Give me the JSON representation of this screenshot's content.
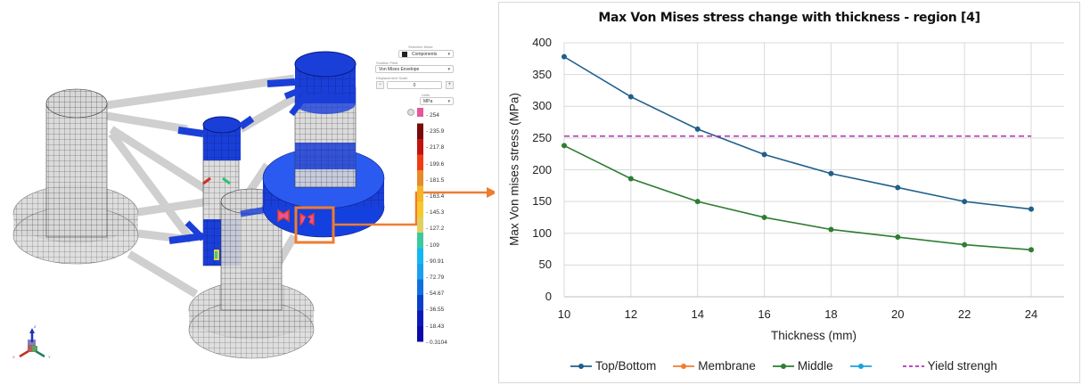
{
  "fea_view": {
    "controls": {
      "selection_mode_label": "Selection Mode",
      "selection_mode_value": "Components",
      "solution_field_label": "Solution Field",
      "solution_field_value": "Von Mises Envelope",
      "displacement_scale_label": "Displacement Scale",
      "displacement_scale_value": "0",
      "units_label": "Units",
      "units_value": "MPa"
    },
    "color_legend": {
      "ticks": [
        "254",
        "235.9",
        "217.8",
        "199.6",
        "181.5",
        "163.4",
        "145.3",
        "127.2",
        "109",
        "90.91",
        "72.79",
        "54.67",
        "36.55",
        "18.43",
        "0.3104"
      ],
      "colors": [
        "#e8559a",
        "#7a0a0a",
        "#c0140f",
        "#f03c14",
        "#e88a2a",
        "#f5b526",
        "#f5c92a",
        "#e0d060",
        "#3cc8a0",
        "#12b8f0",
        "#1aa0f0",
        "#1070e0",
        "#0a40c8",
        "#0a1ab8",
        "#0a0aa8"
      ]
    },
    "triad_axes": {
      "x": "X",
      "y": "Y",
      "z": "Z"
    },
    "highlight_color": "#ed7d31"
  },
  "chart_data": {
    "type": "line",
    "title": "Max Von Mises stress change with thickness - region [4]",
    "xlabel": "Thickness (mm)",
    "ylabel": "Max Von mises stress (MPa)",
    "x": [
      10,
      12,
      14,
      16,
      18,
      20,
      22,
      24
    ],
    "x_ticks": [
      "10",
      "12",
      "14",
      "16",
      "18",
      "20",
      "22",
      "24"
    ],
    "y_ticks": [
      "0",
      "50",
      "100",
      "150",
      "200",
      "250",
      "300",
      "350",
      "400"
    ],
    "ylim": [
      0,
      400
    ],
    "xlim": [
      10,
      25
    ],
    "grid": true,
    "legend_position": "bottom",
    "series": [
      {
        "name": "Top/Bottom",
        "color": "#1f5f8b",
        "values": [
          378,
          315,
          264,
          224,
          194,
          172,
          150,
          138
        ]
      },
      {
        "name": "Membrane",
        "color": "#ed7d31",
        "values": []
      },
      {
        "name": "Middle",
        "color": "#2e7d32",
        "values": [
          238,
          186,
          150,
          125,
          106,
          94,
          82,
          74
        ]
      },
      {
        "name": "",
        "color": "#1ca0dc",
        "values": []
      },
      {
        "name": "Yield strengh",
        "color": "#b030b0",
        "dashed": true,
        "values": [
          253,
          253,
          253,
          253,
          253,
          253,
          253,
          253
        ]
      }
    ]
  }
}
